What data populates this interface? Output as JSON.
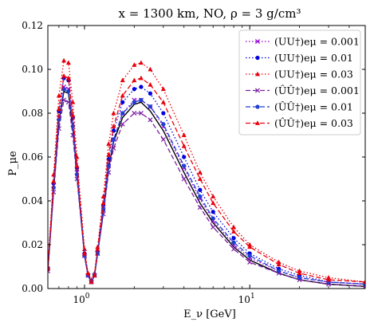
{
  "chart_data": {
    "type": "line",
    "title": "x = 1300 km, NO, ρ = 3 g/cm³",
    "xlabel": "E_ν [GeV]",
    "ylabel": "P_μe",
    "x_scale": "log",
    "xlim": [
      0.6,
      50
    ],
    "ylim": [
      0,
      0.12
    ],
    "yticks": [
      0.0,
      0.02,
      0.04,
      0.06,
      0.08,
      0.1,
      0.12
    ],
    "ytick_labels": [
      "0.00",
      "0.02",
      "0.04",
      "0.06",
      "0.08",
      "0.10",
      "0.12"
    ],
    "xticks": [
      1,
      10
    ],
    "xtick_labels": [
      "10^0",
      "10^1"
    ],
    "legend_position": "top-right",
    "baseline": {
      "color": "#000000",
      "x": [
        0.6,
        0.65,
        0.7,
        0.75,
        0.8,
        0.85,
        0.9,
        1.0,
        1.05,
        1.1,
        1.15,
        1.2,
        1.3,
        1.4,
        1.5,
        1.7,
        2.0,
        2.2,
        2.5,
        3.0,
        4.0,
        5.0,
        6.0,
        8.0,
        10,
        15,
        20,
        30,
        50
      ],
      "y": [
        0.008,
        0.045,
        0.076,
        0.09,
        0.089,
        0.073,
        0.052,
        0.015,
        0.006,
        0.003,
        0.006,
        0.016,
        0.035,
        0.055,
        0.067,
        0.078,
        0.084,
        0.085,
        0.081,
        0.072,
        0.053,
        0.039,
        0.03,
        0.019,
        0.013,
        0.007,
        0.004,
        0.002,
        0.001
      ]
    },
    "series": [
      {
        "name": "(UU†)eμ = 0.001",
        "color": "#9400d3",
        "linestyle": "dotted",
        "marker": "x",
        "x": [
          0.6,
          0.65,
          0.7,
          0.75,
          0.8,
          0.85,
          0.9,
          1.0,
          1.05,
          1.1,
          1.15,
          1.2,
          1.3,
          1.4,
          1.5,
          1.7,
          2.0,
          2.2,
          2.5,
          3.0,
          4.0,
          5.0,
          6.0,
          8.0,
          10,
          15,
          20,
          30,
          50
        ],
        "y": [
          0.009,
          0.047,
          0.078,
          0.092,
          0.091,
          0.075,
          0.053,
          0.015,
          0.006,
          0.003,
          0.006,
          0.016,
          0.036,
          0.056,
          0.068,
          0.08,
          0.086,
          0.086,
          0.083,
          0.074,
          0.055,
          0.041,
          0.031,
          0.02,
          0.014,
          0.008,
          0.005,
          0.003,
          0.002
        ]
      },
      {
        "name": "(UU†)eμ = 0.01",
        "color": "#0000e0",
        "linestyle": "dotted",
        "marker": "o",
        "x": [
          0.6,
          0.65,
          0.7,
          0.75,
          0.8,
          0.85,
          0.9,
          1.0,
          1.05,
          1.1,
          1.15,
          1.2,
          1.3,
          1.4,
          1.5,
          1.7,
          2.0,
          2.2,
          2.5,
          3.0,
          4.0,
          5.0,
          6.0,
          8.0,
          10,
          15,
          20,
          30,
          50
        ],
        "y": [
          0.009,
          0.048,
          0.081,
          0.096,
          0.095,
          0.078,
          0.055,
          0.016,
          0.006,
          0.003,
          0.006,
          0.017,
          0.038,
          0.059,
          0.072,
          0.085,
          0.091,
          0.092,
          0.089,
          0.08,
          0.06,
          0.045,
          0.035,
          0.023,
          0.016,
          0.009,
          0.006,
          0.003,
          0.002
        ]
      },
      {
        "name": "(UU†)eμ = 0.03",
        "color": "#e8000b",
        "linestyle": "dotted",
        "marker": "^",
        "x": [
          0.6,
          0.65,
          0.7,
          0.75,
          0.8,
          0.85,
          0.9,
          1.0,
          1.05,
          1.1,
          1.15,
          1.2,
          1.3,
          1.4,
          1.5,
          1.7,
          2.0,
          2.2,
          2.5,
          3.0,
          4.0,
          5.0,
          6.0,
          8.0,
          10,
          15,
          20,
          30,
          50
        ],
        "y": [
          0.01,
          0.052,
          0.088,
          0.104,
          0.103,
          0.085,
          0.06,
          0.018,
          0.007,
          0.004,
          0.007,
          0.019,
          0.042,
          0.066,
          0.08,
          0.095,
          0.102,
          0.103,
          0.1,
          0.091,
          0.07,
          0.053,
          0.042,
          0.028,
          0.02,
          0.012,
          0.008,
          0.005,
          0.003
        ]
      },
      {
        "name": "(ÛÛ†)eμ = 0.001",
        "color": "#7b1fa2",
        "linestyle": "dashed",
        "marker": "x",
        "x": [
          0.6,
          0.65,
          0.7,
          0.75,
          0.8,
          0.85,
          0.9,
          1.0,
          1.05,
          1.1,
          1.15,
          1.2,
          1.3,
          1.4,
          1.5,
          1.7,
          2.0,
          2.2,
          2.5,
          3.0,
          4.0,
          5.0,
          6.0,
          8.0,
          10,
          15,
          20,
          30,
          50
        ],
        "y": [
          0.008,
          0.044,
          0.073,
          0.086,
          0.085,
          0.07,
          0.05,
          0.015,
          0.006,
          0.003,
          0.006,
          0.016,
          0.034,
          0.053,
          0.064,
          0.075,
          0.08,
          0.08,
          0.077,
          0.068,
          0.05,
          0.037,
          0.028,
          0.018,
          0.012,
          0.007,
          0.004,
          0.002,
          0.001
        ]
      },
      {
        "name": "(ÛÛ†)eμ = 0.01",
        "color": "#1f3fd0",
        "linestyle": "dashed",
        "marker": "o",
        "x": [
          0.6,
          0.65,
          0.7,
          0.75,
          0.8,
          0.85,
          0.9,
          1.0,
          1.05,
          1.1,
          1.15,
          1.2,
          1.3,
          1.4,
          1.5,
          1.7,
          2.0,
          2.2,
          2.5,
          3.0,
          4.0,
          5.0,
          6.0,
          8.0,
          10,
          15,
          20,
          30,
          50
        ],
        "y": [
          0.009,
          0.046,
          0.077,
          0.091,
          0.09,
          0.074,
          0.052,
          0.015,
          0.006,
          0.003,
          0.006,
          0.016,
          0.036,
          0.056,
          0.068,
          0.08,
          0.085,
          0.086,
          0.083,
          0.075,
          0.056,
          0.042,
          0.032,
          0.021,
          0.015,
          0.008,
          0.005,
          0.003,
          0.002
        ]
      },
      {
        "name": "(ÛÛ†)eμ = 0.03",
        "color": "#e8000b",
        "linestyle": "dashed",
        "marker": "^",
        "x": [
          0.6,
          0.65,
          0.7,
          0.75,
          0.8,
          0.85,
          0.9,
          1.0,
          1.05,
          1.1,
          1.15,
          1.2,
          1.3,
          1.4,
          1.5,
          1.7,
          2.0,
          2.2,
          2.5,
          3.0,
          4.0,
          5.0,
          6.0,
          8.0,
          10,
          15,
          20,
          30,
          50
        ],
        "y": [
          0.009,
          0.049,
          0.082,
          0.097,
          0.096,
          0.079,
          0.056,
          0.016,
          0.007,
          0.003,
          0.006,
          0.018,
          0.039,
          0.061,
          0.074,
          0.088,
          0.095,
          0.096,
          0.093,
          0.085,
          0.065,
          0.05,
          0.039,
          0.026,
          0.019,
          0.011,
          0.007,
          0.004,
          0.003
        ]
      }
    ]
  }
}
